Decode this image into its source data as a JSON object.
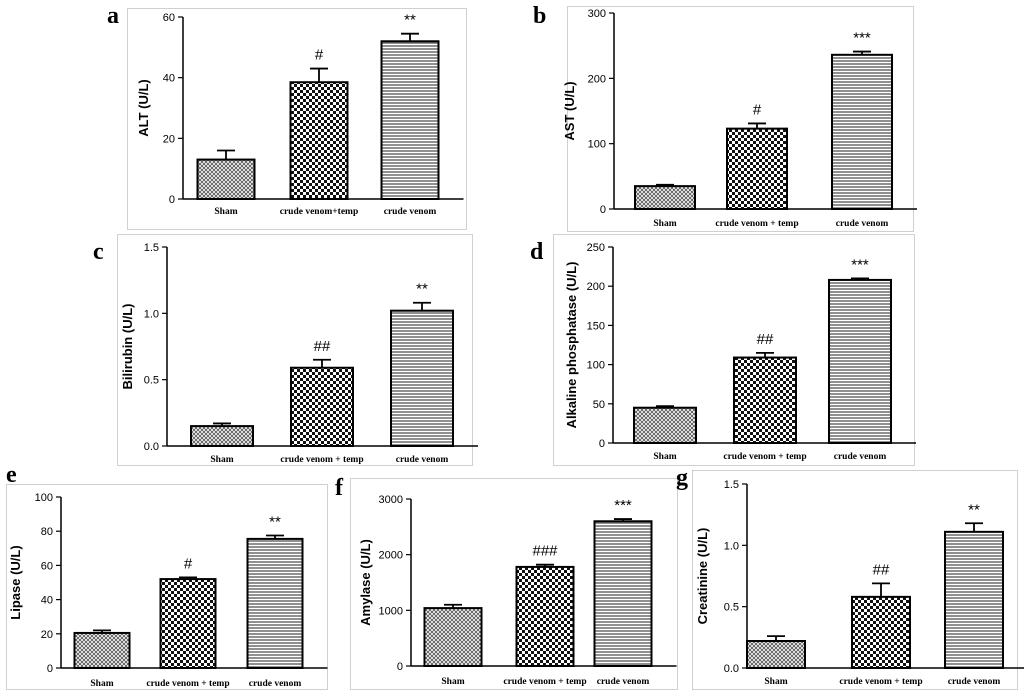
{
  "chart_data": [
    {
      "id": "a",
      "type": "bar",
      "panel_label": "a",
      "categories": [
        "Sham",
        "crude venom+temp",
        "crude venom"
      ],
      "values": [
        13,
        38.5,
        52
      ],
      "errors": [
        3,
        4.5,
        2.5
      ],
      "annotations": [
        "",
        "#",
        "**"
      ],
      "ylabel": "ALT (U/L)",
      "ylim": [
        0,
        60
      ],
      "yticks": [
        0,
        20,
        40,
        60
      ],
      "patterns": [
        "mesh",
        "check",
        "hlines"
      ],
      "grid": false
    },
    {
      "id": "b",
      "type": "bar",
      "panel_label": "b",
      "categories": [
        "Sham",
        "crude venom + temp",
        "crude venom"
      ],
      "values": [
        35,
        123,
        236
      ],
      "errors": [
        2,
        8,
        5
      ],
      "annotations": [
        "",
        "#",
        "***"
      ],
      "ylabel": "AST (U/L)",
      "ylim": [
        0,
        300
      ],
      "yticks": [
        0,
        100,
        200,
        300
      ],
      "patterns": [
        "mesh",
        "check",
        "hlines"
      ],
      "grid": false
    },
    {
      "id": "c",
      "type": "bar",
      "panel_label": "c",
      "categories": [
        "Sham",
        "crude venom + temp",
        "crude venom"
      ],
      "values": [
        0.15,
        0.59,
        1.02
      ],
      "errors": [
        0.02,
        0.06,
        0.06
      ],
      "annotations": [
        "",
        "##",
        "**"
      ],
      "ylabel": "Bilirubin (U/L)",
      "ylim": [
        0,
        1.5
      ],
      "yticks": [
        "0.0",
        "0.5",
        "1.0",
        "1.5"
      ],
      "patterns": [
        "mesh",
        "check",
        "hlines"
      ],
      "grid": false
    },
    {
      "id": "d",
      "type": "bar",
      "panel_label": "d",
      "categories": [
        "Sham",
        "crude venom + temp",
        "crude venom"
      ],
      "values": [
        45,
        109,
        208
      ],
      "errors": [
        2,
        6,
        2
      ],
      "annotations": [
        "",
        "##",
        "***"
      ],
      "ylabel": "Alkaline phosphatase (U/L)",
      "ylim": [
        0,
        250
      ],
      "yticks": [
        0,
        50,
        100,
        150,
        200,
        250
      ],
      "patterns": [
        "mesh",
        "check",
        "hlines"
      ],
      "grid": false
    },
    {
      "id": "e",
      "type": "bar",
      "panel_label": "e",
      "categories": [
        "Sham",
        "crude venom + temp",
        "crude venom"
      ],
      "values": [
        20.5,
        52,
        75.5
      ],
      "errors": [
        1.5,
        1,
        2
      ],
      "annotations": [
        "",
        "#",
        "**"
      ],
      "ylabel": "Lipase (U/L)",
      "ylim": [
        0,
        100
      ],
      "yticks": [
        0,
        20,
        40,
        60,
        80,
        100
      ],
      "patterns": [
        "mesh",
        "check",
        "hlines"
      ],
      "grid": false
    },
    {
      "id": "f",
      "type": "bar",
      "panel_label": "f",
      "categories": [
        "Sham",
        "crude venom + temp",
        "crude venom"
      ],
      "values": [
        1040,
        1780,
        2600
      ],
      "errors": [
        60,
        40,
        40
      ],
      "annotations": [
        "",
        "###",
        "***"
      ],
      "ylabel": "Amylase (U/L)",
      "ylim": [
        0,
        3000
      ],
      "yticks": [
        0,
        1000,
        2000,
        3000
      ],
      "patterns": [
        "mesh",
        "check",
        "hlines"
      ],
      "grid": false
    },
    {
      "id": "g",
      "type": "bar",
      "panel_label": "g",
      "categories": [
        "Sham",
        "crude venom + temp",
        "crude venom"
      ],
      "values": [
        0.22,
        0.58,
        1.11
      ],
      "errors": [
        0.04,
        0.11,
        0.07
      ],
      "annotations": [
        "",
        "##",
        "**"
      ],
      "ylabel": "Creatinine (U/L)",
      "ylim": [
        0,
        1.5
      ],
      "yticks": [
        "0.0",
        "0.5",
        "1.0",
        "1.5"
      ],
      "patterns": [
        "mesh",
        "check",
        "hlines"
      ],
      "grid": false
    }
  ]
}
